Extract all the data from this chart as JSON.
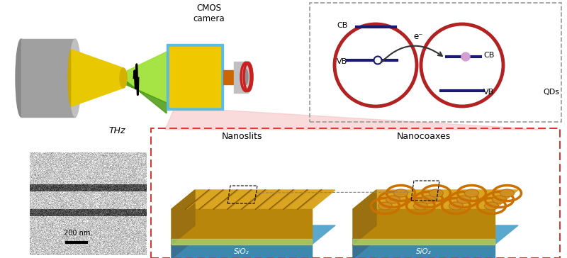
{
  "bg_color": "#ffffff",
  "thz_label": "THz",
  "cmos_label": "CMOS\ncamera",
  "nanoslits_label": "Nanoslits",
  "nanocoaxes_label": "Nanocoaxes",
  "sio2_label": "SiO₂",
  "scale_bar_label": "200 nm",
  "cb_label": "CB",
  "vb_label": "VB",
  "qds_label": "QDs",
  "eminus_label": "e⁻",
  "dark_red": "#B22222",
  "navy_blue": "#1a1a6e",
  "gold_top": "#DAA520",
  "gold_side": "#B8860B",
  "gold_front_slit": "#8B6914",
  "slab_top": "#5ba3c9",
  "slab_side": "#4682a0",
  "green_light": "#7dc832",
  "green_dark": "#3a8c00",
  "pink_dot": "#d4a0d4",
  "pink_beam": "#f4b8b8",
  "gray_cyl": "#a0a0a0",
  "orange_lens": "#cc6600"
}
